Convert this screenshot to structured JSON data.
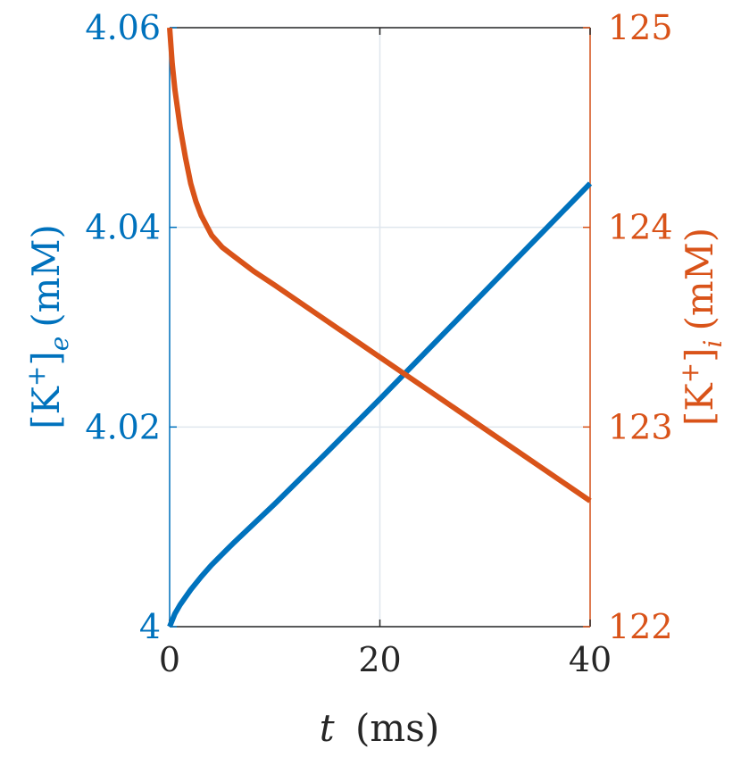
{
  "chart_data": {
    "type": "line",
    "xlabel": "t (ms)",
    "xlabel_var": "t",
    "xlabel_unit": "(ms)",
    "ylabel_left": "[K+]e (mM)",
    "ylabel_left_parts": {
      "open": "[K",
      "sup": "+",
      "close": "]",
      "sub": "e",
      "unit": "(mM)"
    },
    "ylabel_right": "[K+]i (mM)",
    "ylabel_right_parts": {
      "open": "[K",
      "sup": "+",
      "close": "]",
      "sub": "i",
      "unit": "(mM)"
    },
    "xlim": [
      0,
      40
    ],
    "ylim_left": [
      4.0,
      4.06
    ],
    "ylim_right": [
      122,
      125
    ],
    "x_ticks": [
      "0",
      "20",
      "40"
    ],
    "y_ticks_left": [
      "4",
      "4.02",
      "4.04",
      "4.06"
    ],
    "y_ticks_right": [
      "122",
      "123",
      "124",
      "125"
    ],
    "grid": true,
    "colors": {
      "left": "#0072BD",
      "right": "#D95319",
      "axes": "#262626",
      "grid": "#dfe6ee"
    },
    "series": [
      {
        "axis": "left",
        "x": [
          0,
          0.5,
          1,
          2,
          3,
          4,
          6,
          8,
          10,
          15,
          20,
          25,
          30,
          35,
          40
        ],
        "y": [
          4.0,
          4.0013,
          4.0022,
          4.0037,
          4.005,
          4.0062,
          4.0083,
          4.0103,
          4.0123,
          4.0175,
          4.0228,
          4.0282,
          4.0336,
          4.039,
          4.0444
        ]
      },
      {
        "axis": "right",
        "x": [
          0,
          0.25,
          0.5,
          1,
          1.5,
          2,
          2.5,
          3,
          4,
          5,
          6,
          8,
          10,
          15,
          20,
          25,
          30,
          35,
          40
        ],
        "y": [
          125.0,
          124.82,
          124.69,
          124.5,
          124.35,
          124.22,
          124.13,
          124.06,
          123.96,
          123.9,
          123.86,
          123.78,
          123.71,
          123.53,
          123.35,
          123.17,
          122.99,
          122.81,
          122.63
        ]
      }
    ]
  }
}
